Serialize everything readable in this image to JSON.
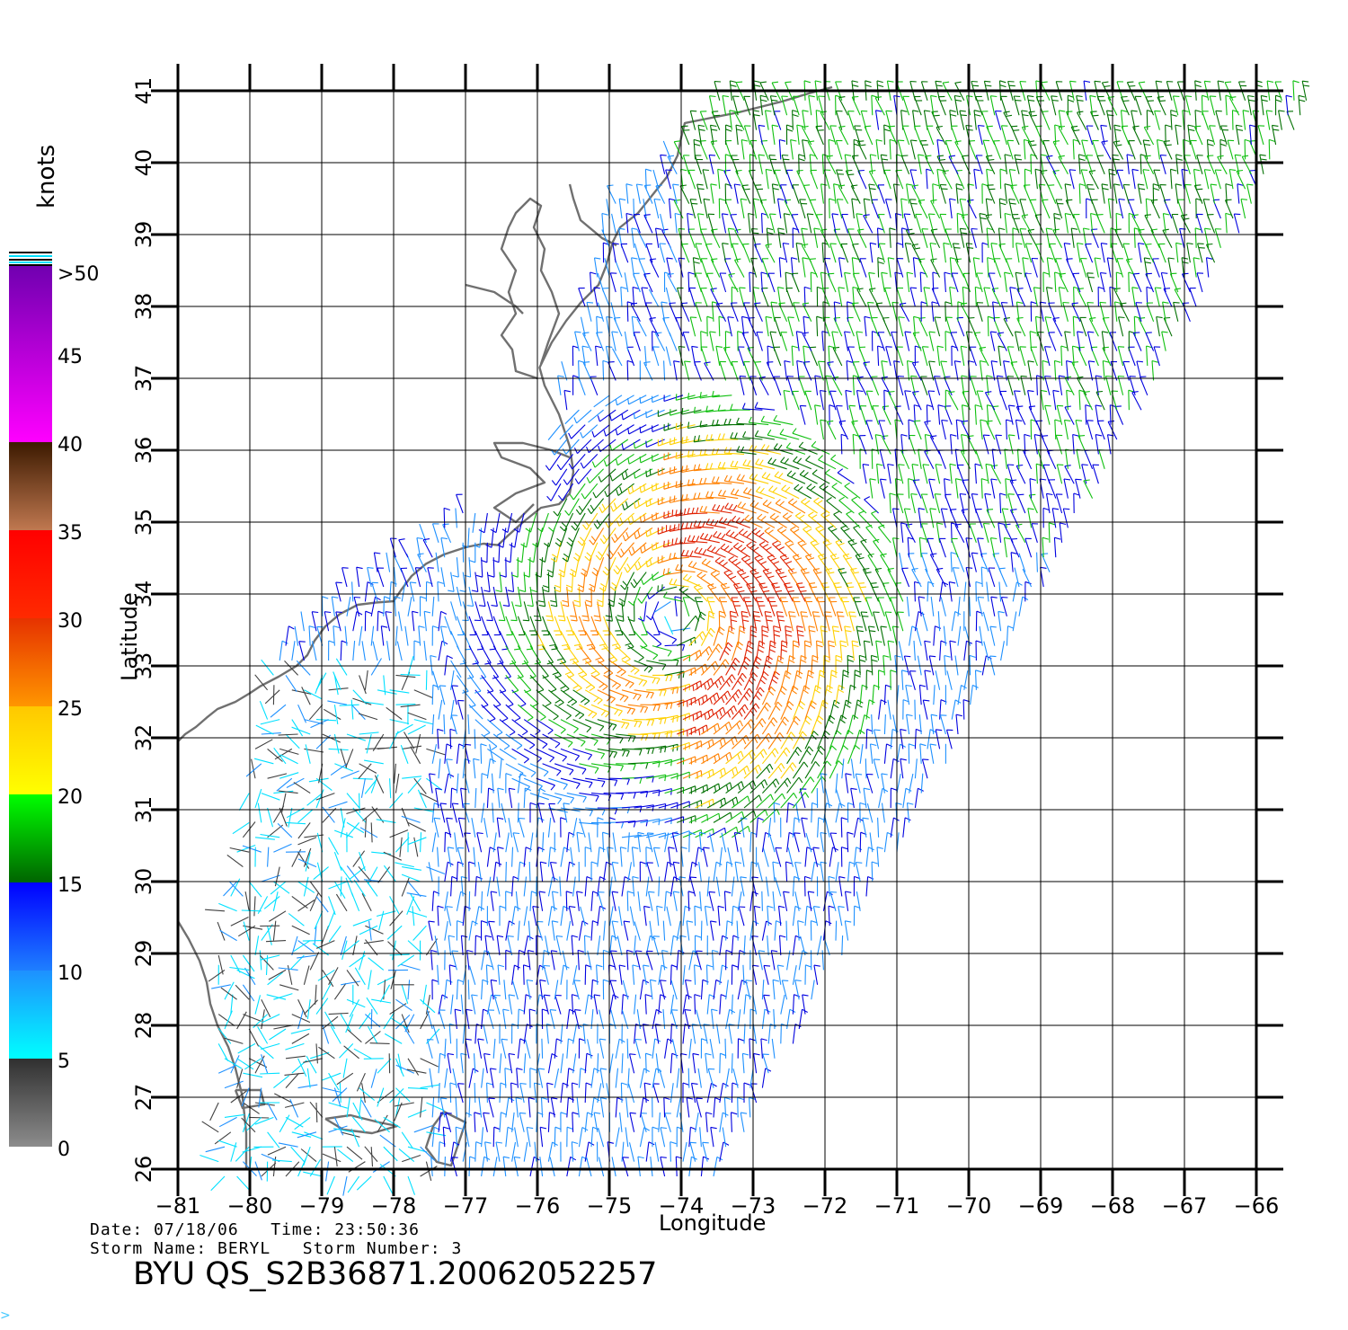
{
  "header": {
    "date_line": "Date: 07/18/06   Time: 23:50:36",
    "storm_line": "Storm Name: BERYL   Storm Number: 3",
    "product_id": "BYU QS_S2B36871.20062052257",
    "footer_mark": ">"
  },
  "colorbar": {
    "units": "knots",
    "tick_labels": [
      "0",
      "5",
      "10",
      "15",
      "20",
      "25",
      "30",
      "35",
      "40",
      "45",
      ">50"
    ],
    "segments": [
      {
        "from": 0,
        "to": 5,
        "top": "#303030",
        "bottom": "#8c8c8c"
      },
      {
        "from": 5,
        "to": 10,
        "top": "#1e90ff",
        "bottom": "#00ffff"
      },
      {
        "from": 10,
        "to": 15,
        "top": "#0000ff",
        "bottom": "#1e7fff"
      },
      {
        "from": 15,
        "to": 20,
        "top": "#00ff00",
        "bottom": "#006400"
      },
      {
        "from": 20,
        "to": 25,
        "top": "#ffc800",
        "bottom": "#ffff00"
      },
      {
        "from": 25,
        "to": 30,
        "top": "#e63200",
        "bottom": "#ff9600"
      },
      {
        "from": 30,
        "to": 35,
        "top": "#ff0000",
        "bottom": "#ff2a00"
      },
      {
        "from": 35,
        "to": 40,
        "top": "#3c1a00",
        "bottom": "#c07850"
      },
      {
        "from": 40,
        "to": 50,
        "top": "#7000b0",
        "bottom": "#ff00ff"
      }
    ]
  },
  "chart_data": {
    "type": "map-wind-barbs",
    "xlabel": "Longitude",
    "ylabel": "Latitude",
    "xlim": [
      -81,
      -66
    ],
    "ylim": [
      26,
      41
    ],
    "x_ticks": [
      -81,
      -80,
      -79,
      -78,
      -77,
      -76,
      -75,
      -74,
      -73,
      -72,
      -71,
      -70,
      -69,
      -68,
      -67,
      -66
    ],
    "y_ticks": [
      26,
      27,
      28,
      29,
      30,
      31,
      32,
      33,
      34,
      35,
      36,
      37,
      38,
      39,
      40,
      41
    ],
    "x_tick_labels": [
      "−81",
      "−80",
      "−79",
      "−78",
      "−77",
      "−76",
      "−75",
      "−74",
      "−73",
      "−72",
      "−71",
      "−70",
      "−69",
      "−68",
      "−67",
      "−66"
    ],
    "y_tick_labels": [
      "26",
      "27",
      "28",
      "29",
      "30",
      "31",
      "32",
      "33",
      "34",
      "35",
      "36",
      "37",
      "38",
      "39",
      "40",
      "41"
    ],
    "grid": true,
    "storm_center": {
      "lon": -74.1,
      "lat": 33.7
    },
    "max_wind_knots": 33,
    "colors": {
      "coast": "#707070",
      "grid": "#000000"
    }
  }
}
